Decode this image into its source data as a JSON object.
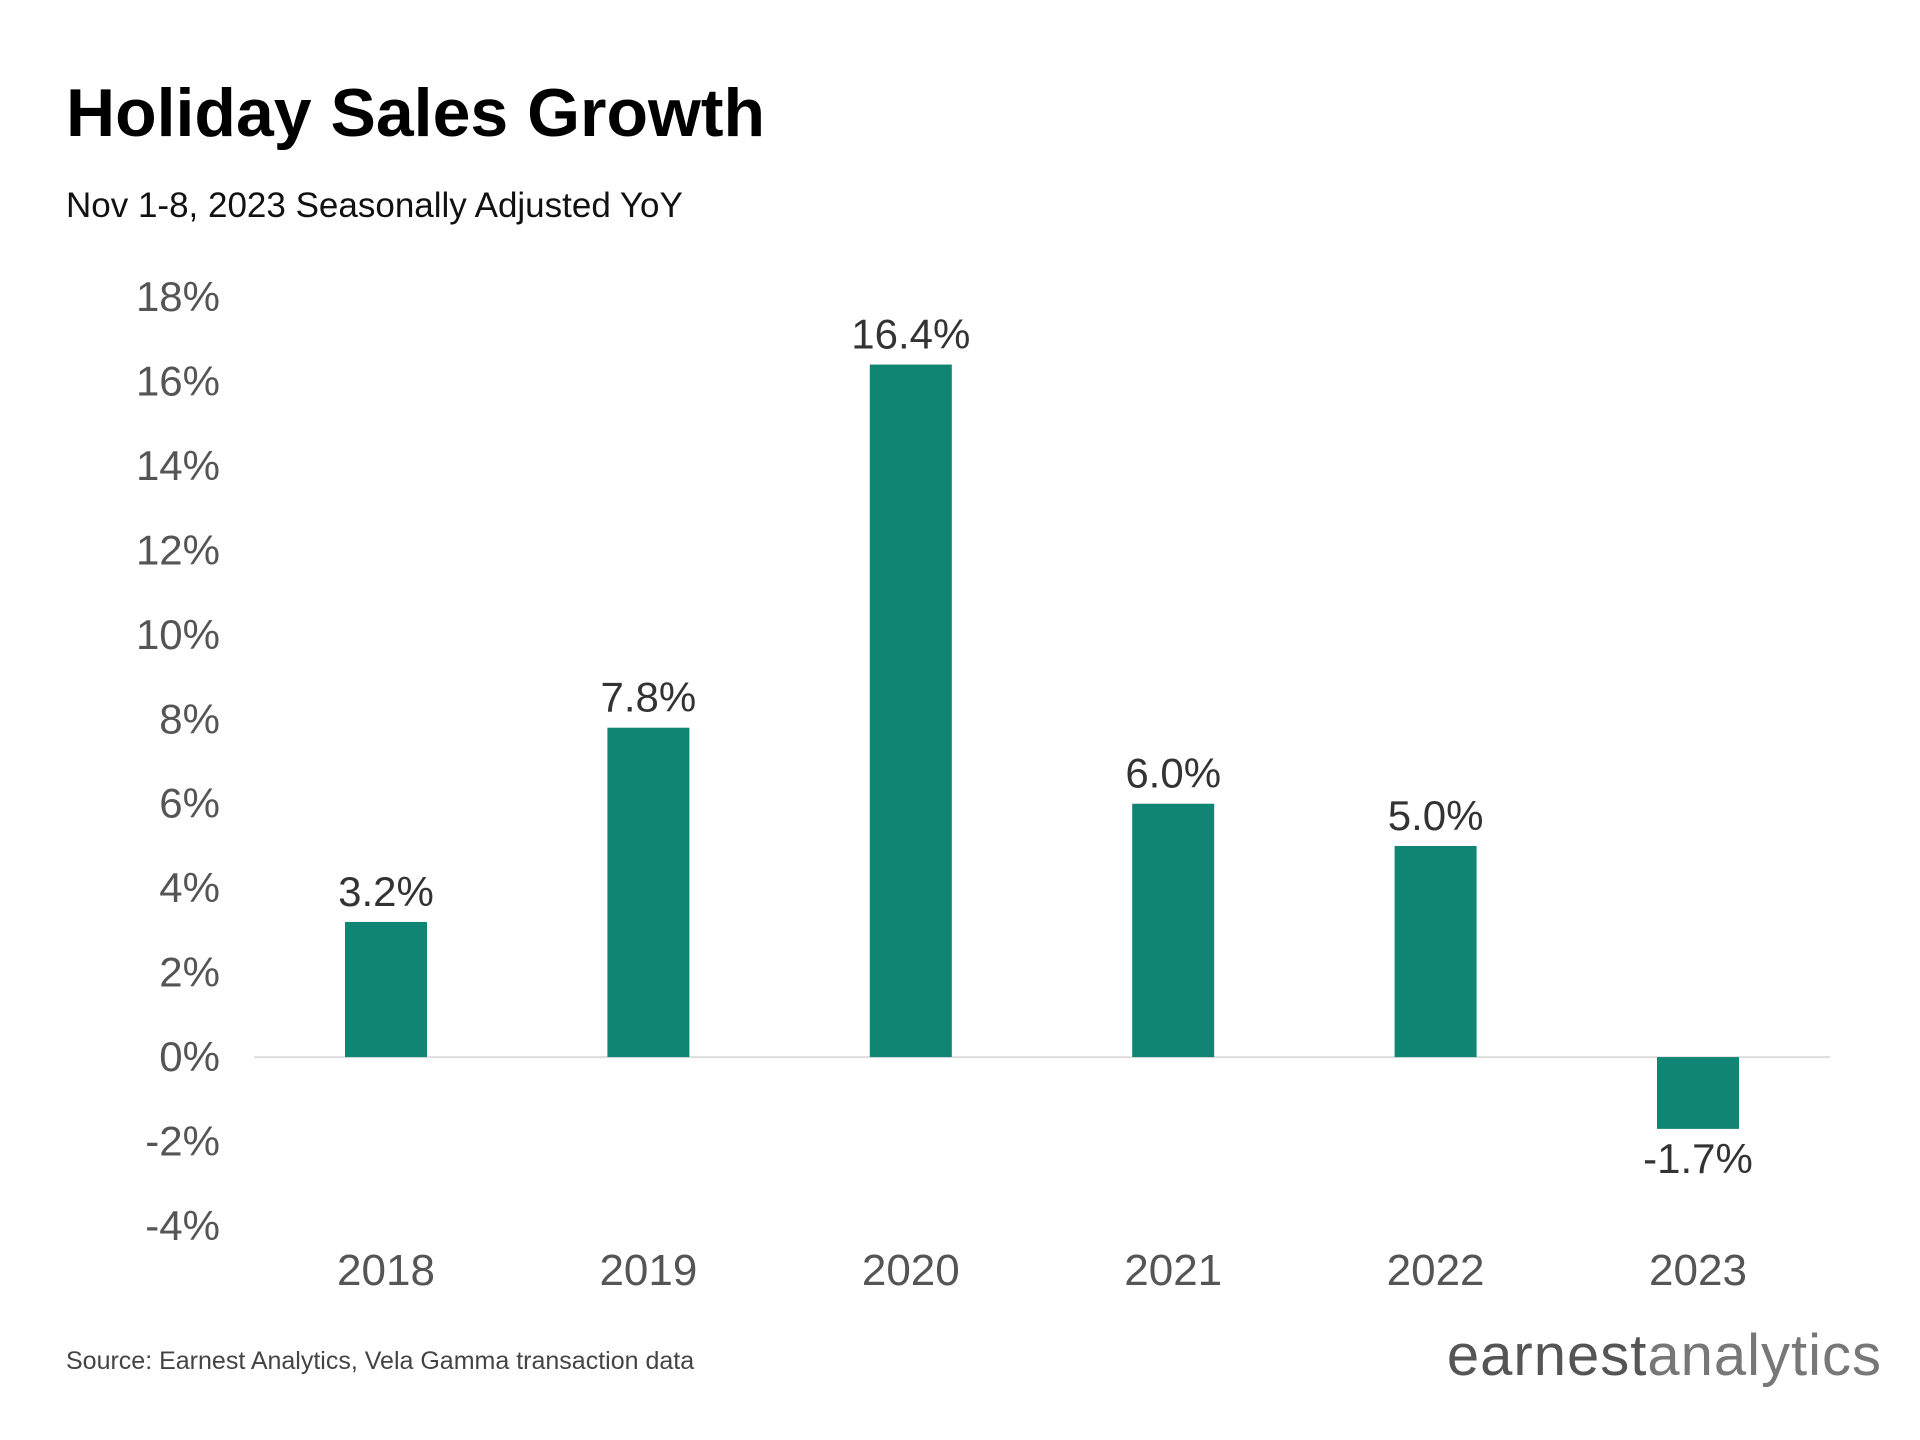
{
  "title": "Holiday Sales Growth",
  "subtitle": "Nov 1-8, 2023 Seasonally Adjusted YoY",
  "source": "Source: Earnest Analytics, Vela Gamma transaction data",
  "logo": {
    "part1": "earnest",
    "part2": "analytics"
  },
  "colors": {
    "bar": "#108573",
    "axis_text": "#555555",
    "label_text": "#333333",
    "zero_line": "#dddddd"
  },
  "chart_data": {
    "type": "bar",
    "categories": [
      "2018",
      "2019",
      "2020",
      "2021",
      "2022",
      "2023"
    ],
    "values": [
      3.2,
      7.8,
      16.4,
      6.0,
      5.0,
      -1.7
    ],
    "data_labels": [
      "3.2%",
      "7.8%",
      "16.4%",
      "6.0%",
      "5.0%",
      "-1.7%"
    ],
    "y_ticks": [
      18,
      16,
      14,
      12,
      10,
      8,
      6,
      4,
      2,
      0,
      -2,
      -4
    ],
    "y_tick_labels": [
      "18%",
      "16%",
      "14%",
      "12%",
      "10%",
      "8%",
      "6%",
      "4%",
      "2%",
      "0%",
      "-2%",
      "-4%"
    ],
    "ylim": [
      -4,
      18
    ],
    "grid": false,
    "xlabel": "",
    "ylabel": ""
  }
}
